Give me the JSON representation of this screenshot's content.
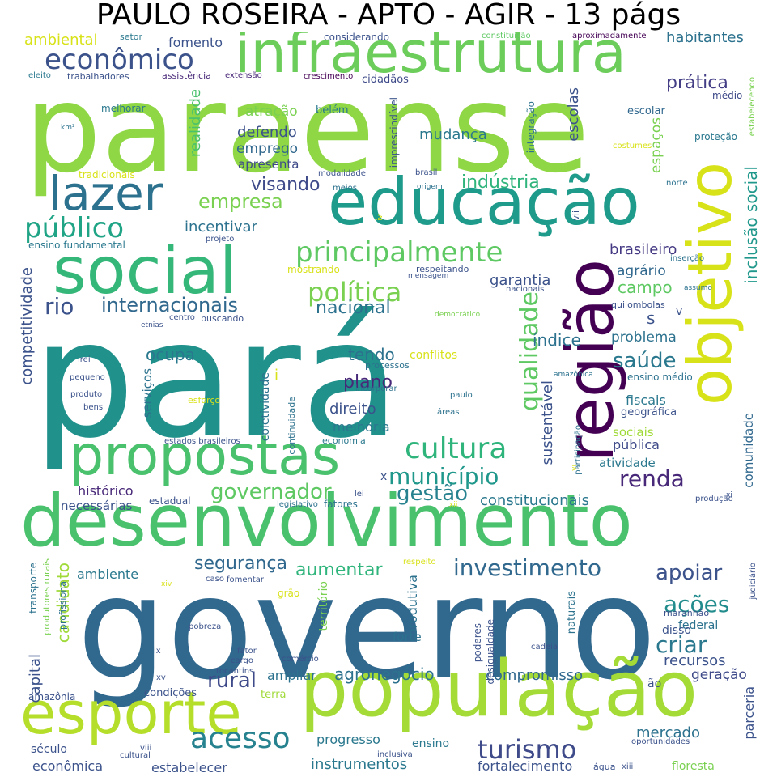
{
  "title": "PAULO ROSEIRA - APTO - AGIR - 13 págs",
  "words": [
    {
      "text": "paraense",
      "color": "#8fd744"
    },
    {
      "text": "pará",
      "color": "#21918c"
    },
    {
      "text": "governo",
      "color": "#31688e"
    },
    {
      "text": "desenvolvimento",
      "color": "#4ac16d"
    },
    {
      "text": "população",
      "color": "#a5db36"
    },
    {
      "text": "infraestrutura",
      "color": "#6ccd5a"
    },
    {
      "text": "educação",
      "color": "#1e9b8a"
    },
    {
      "text": "social",
      "color": "#35b779"
    },
    {
      "text": "esporte",
      "color": "#b5de2b"
    },
    {
      "text": "propostas",
      "color": "#4ac16d"
    },
    {
      "text": "região",
      "color": "#440154"
    },
    {
      "text": "objetivo",
      "color": "#d8e219"
    },
    {
      "text": "lazer",
      "color": "#2c728e"
    },
    {
      "text": "econômico",
      "color": "#3b528b"
    },
    {
      "text": "acesso",
      "color": "#26828e"
    },
    {
      "text": "cultura",
      "color": "#2fb47c"
    },
    {
      "text": "principalmente",
      "color": "#5ec962"
    },
    {
      "text": "público",
      "color": "#20a486"
    },
    {
      "text": "política",
      "color": "#7ad151"
    },
    {
      "text": "turismo",
      "color": "#3e4a89"
    },
    {
      "text": "renda",
      "color": "#482878"
    },
    {
      "text": "investimento",
      "color": "#31688e"
    },
    {
      "text": "criar",
      "color": "#2a788e"
    },
    {
      "text": "ações",
      "color": "#228c8d"
    },
    {
      "text": "apoiar",
      "color": "#3b528b"
    },
    {
      "text": "saúde",
      "color": "#2a788e"
    },
    {
      "text": "qualidade",
      "color": "#5ec962"
    },
    {
      "text": "município",
      "color": "#1f988b"
    },
    {
      "text": "gestão",
      "color": "#26828e"
    },
    {
      "text": "governador",
      "color": "#5ec962"
    },
    {
      "text": "empresa",
      "color": "#7ad151"
    },
    {
      "text": "indústria",
      "color": "#2fb47c"
    },
    {
      "text": "visando",
      "color": "#3e4a89"
    },
    {
      "text": "rio",
      "color": "#3b528b"
    },
    {
      "text": "internacionais",
      "color": "#31688e"
    },
    {
      "text": "nacional",
      "color": "#2c728e"
    },
    {
      "text": "prática",
      "color": "#433e85"
    },
    {
      "text": "habitantes",
      "color": "#2c728e"
    },
    {
      "text": "ambiental",
      "color": "#d8e219"
    },
    {
      "text": "setor",
      "color": "#2a788e"
    },
    {
      "text": "fomento",
      "color": "#3b528b"
    },
    {
      "text": "considerando",
      "color": "#3b528b"
    },
    {
      "text": "constituição",
      "color": "#5ec962"
    },
    {
      "text": "aproximadamente",
      "color": "#440154"
    },
    {
      "text": "eleito",
      "color": "#2a788e"
    },
    {
      "text": "trabalhadores",
      "color": "#3b528b"
    },
    {
      "text": "assistência",
      "color": "#482878"
    },
    {
      "text": "extensão",
      "color": "#482878"
    },
    {
      "text": "crescimento",
      "color": "#440154"
    },
    {
      "text": "cidadãos",
      "color": "#3e4a89"
    },
    {
      "text": "médio",
      "color": "#3e4a89"
    },
    {
      "text": "realidade",
      "color": "#4ac16d"
    },
    {
      "text": "atração",
      "color": "#7ad151"
    },
    {
      "text": "belém",
      "color": "#2a788e"
    },
    {
      "text": "defendo",
      "color": "#3b528b"
    },
    {
      "text": "emprego",
      "color": "#31688e"
    },
    {
      "text": "apresenta",
      "color": "#3e4a89"
    },
    {
      "text": "mudança",
      "color": "#2a788e"
    },
    {
      "text": "escolas",
      "color": "#3b528b"
    },
    {
      "text": "espaços",
      "color": "#7ad151"
    },
    {
      "text": "escolar",
      "color": "#31688e"
    },
    {
      "text": "proteção",
      "color": "#2a788e"
    },
    {
      "text": "costumes",
      "color": "#d8e219"
    },
    {
      "text": "inclusão social",
      "color": "#1f988b"
    },
    {
      "text": "brasileiro",
      "color": "#443983"
    },
    {
      "text": "agrário",
      "color": "#31688e"
    },
    {
      "text": "campo",
      "color": "#5ec962"
    },
    {
      "text": "garantia",
      "color": "#3b528b"
    },
    {
      "text": "incentivar",
      "color": "#2c728e"
    },
    {
      "text": "competitividade",
      "color": "#3b528b"
    },
    {
      "text": "ocupa",
      "color": "#2a788e"
    },
    {
      "text": "tendo",
      "color": "#2c728e"
    },
    {
      "text": "conflitos",
      "color": "#d8e219"
    },
    {
      "text": "plano",
      "color": "#482878"
    },
    {
      "text": "direito",
      "color": "#3b528b"
    },
    {
      "text": "melhoria",
      "color": "#2a788e"
    },
    {
      "text": "índice",
      "color": "#2c728e"
    },
    {
      "text": "problema",
      "color": "#2c728e"
    },
    {
      "text": "sustentável",
      "color": "#3b528b"
    },
    {
      "text": "fiscais",
      "color": "#2a788e"
    },
    {
      "text": "sociais",
      "color": "#a0da39"
    },
    {
      "text": "pública",
      "color": "#3e4a89"
    },
    {
      "text": "atividade",
      "color": "#2a788e"
    },
    {
      "text": "comunidade",
      "color": "#31688e"
    },
    {
      "text": "constitucionais",
      "color": "#2a788e"
    },
    {
      "text": "histórico",
      "color": "#482878"
    },
    {
      "text": "necessárias",
      "color": "#3b528b"
    },
    {
      "text": "estadual",
      "color": "#3b528b"
    },
    {
      "text": "segurança",
      "color": "#31688e"
    },
    {
      "text": "aumentar",
      "color": "#2fb47c"
    },
    {
      "text": "ambiente",
      "color": "#2a788e"
    },
    {
      "text": "candidato",
      "color": "#a0da39"
    },
    {
      "text": "rural",
      "color": "#3e4a89"
    },
    {
      "text": "ampliar",
      "color": "#2c728e"
    },
    {
      "text": "agronegócio",
      "color": "#2c728e"
    },
    {
      "text": "compromisso",
      "color": "#31688e"
    },
    {
      "text": "recursos",
      "color": "#3b528b"
    },
    {
      "text": "geração",
      "color": "#3e4a89"
    },
    {
      "text": "mercado",
      "color": "#2c728e"
    },
    {
      "text": "parceria",
      "color": "#3b528b"
    },
    {
      "text": "instrumentos",
      "color": "#2a788e"
    },
    {
      "text": "estabelecer",
      "color": "#3b528b"
    },
    {
      "text": "econômica",
      "color": "#3b528b"
    },
    {
      "text": "fortalecimento",
      "color": "#3b528b"
    },
    {
      "text": "floresta",
      "color": "#7ad151"
    },
    {
      "text": "capital",
      "color": "#3b528b"
    },
    {
      "text": "amazônia",
      "color": "#3b528b"
    },
    {
      "text": "século",
      "color": "#3b528b"
    },
    {
      "text": "progresso",
      "color": "#2a788e"
    },
    {
      "text": "ensino",
      "color": "#2a788e"
    },
    {
      "text": "condições",
      "color": "#3b528b"
    },
    {
      "text": "terra",
      "color": "#a0da39"
    },
    {
      "text": "tradicionais",
      "color": "#d8e219"
    },
    {
      "text": "ensino fundamental",
      "color": "#2a788e"
    },
    {
      "text": "melhorar",
      "color": "#2a788e"
    },
    {
      "text": "estados brasileiros",
      "color": "#3b528b"
    },
    {
      "text": "coletividade",
      "color": "#2c728e"
    },
    {
      "text": "serviços",
      "color": "#2c728e"
    },
    {
      "text": "continuidade",
      "color": "#2c728e"
    },
    {
      "text": "economia",
      "color": "#2a788e"
    },
    {
      "text": "processos",
      "color": "#2c728e"
    },
    {
      "text": "incorporar",
      "color": "#2c728e"
    },
    {
      "text": "áreas",
      "color": "#2c728e"
    },
    {
      "text": "paulo",
      "color": "#2c728e"
    },
    {
      "text": "esforço",
      "color": "#d8e219"
    },
    {
      "text": "produto",
      "color": "#3b528b"
    },
    {
      "text": "bens",
      "color": "#3b528b"
    },
    {
      "text": "pequeno",
      "color": "#3b528b"
    },
    {
      "text": "irei",
      "color": "#3b528b"
    },
    {
      "text": "centro",
      "color": "#3b528b"
    },
    {
      "text": "buscando",
      "color": "#3b528b"
    },
    {
      "text": "etnias",
      "color": "#3b528b"
    },
    {
      "text": "mostrando",
      "color": "#d8e219"
    },
    {
      "text": "respeitando",
      "color": "#3b528b"
    },
    {
      "text": "mensagem",
      "color": "#3b528b"
    },
    {
      "text": "nacionais",
      "color": "#3b528b"
    },
    {
      "text": "democrático",
      "color": "#7ad151"
    },
    {
      "text": "quilombolas",
      "color": "#3b528b"
    },
    {
      "text": "inserção",
      "color": "#2c728e"
    },
    {
      "text": "assumo",
      "color": "#2c728e"
    },
    {
      "text": "projeto",
      "color": "#3b528b"
    },
    {
      "text": "brasil",
      "color": "#3b528b"
    },
    {
      "text": "origem",
      "color": "#2c728e"
    },
    {
      "text": "meios",
      "color": "#2c728e"
    },
    {
      "text": "modalidade",
      "color": "#3b528b"
    },
    {
      "text": "imprescindível",
      "color": "#3b528b"
    },
    {
      "text": "integração",
      "color": "#2c728e"
    },
    {
      "text": "norte",
      "color": "#2c728e"
    },
    {
      "text": "estabelecendo",
      "color": "#7ad151"
    },
    {
      "text": "km²",
      "color": "#2c728e"
    },
    {
      "text": "transporte",
      "color": "#2c728e"
    },
    {
      "text": "produtores rurais",
      "color": "#7ad151"
    },
    {
      "text": "profissional",
      "color": "#2c728e"
    },
    {
      "text": "pobreza",
      "color": "#3b528b"
    },
    {
      "text": "fator",
      "color": "#3b528b"
    },
    {
      "text": "cargo",
      "color": "#3b528b"
    },
    {
      "text": "tocantins",
      "color": "#3b528b"
    },
    {
      "text": "comércio",
      "color": "#3b528b"
    },
    {
      "text": "cadeia",
      "color": "#3b528b"
    },
    {
      "text": "território",
      "color": "#7ad151"
    },
    {
      "text": "forte",
      "color": "#2c728e"
    },
    {
      "text": "produtiva",
      "color": "#2c728e"
    },
    {
      "text": "poderes",
      "color": "#3b528b"
    },
    {
      "text": "desigualdade",
      "color": "#3b528b"
    },
    {
      "text": "naturais",
      "color": "#2c728e"
    },
    {
      "text": "federal",
      "color": "#2c728e"
    },
    {
      "text": "disso",
      "color": "#3b528b"
    },
    {
      "text": "maranhão",
      "color": "#3b528b"
    },
    {
      "text": "judiciário",
      "color": "#3b528b"
    },
    {
      "text": "ão",
      "color": "#3b528b"
    },
    {
      "text": "oportunidades",
      "color": "#3b528b"
    },
    {
      "text": "água",
      "color": "#3b528b"
    },
    {
      "text": "xiii",
      "color": "#3b528b"
    },
    {
      "text": "lei",
      "color": "#3b528b"
    },
    {
      "text": "legislativo",
      "color": "#2c728e"
    },
    {
      "text": "fatores",
      "color": "#2c728e"
    },
    {
      "text": "fomentar",
      "color": "#3b528b"
    },
    {
      "text": "grão",
      "color": "#d8e219"
    },
    {
      "text": "respeito",
      "color": "#d8e219"
    },
    {
      "text": "caso",
      "color": "#3b528b"
    },
    {
      "text": "produção",
      "color": "#3b528b"
    },
    {
      "text": "participação",
      "color": "#2c728e"
    },
    {
      "text": "amazônica",
      "color": "#2c728e"
    },
    {
      "text": "geográfica",
      "color": "#3b528b"
    },
    {
      "text": "ensino médio",
      "color": "#2c728e"
    },
    {
      "text": "cultural",
      "color": "#3b528b"
    },
    {
      "text": "inclusiva",
      "color": "#3b528b"
    },
    {
      "text": "s",
      "color": "#3b528b"
    },
    {
      "text": "i",
      "color": "#d8e219"
    },
    {
      "text": "v",
      "color": "#3b528b"
    },
    {
      "text": "xiv",
      "color": "#d8e219"
    },
    {
      "text": "ix",
      "color": "#3b528b"
    },
    {
      "text": "xv",
      "color": "#3b528b"
    },
    {
      "text": "viii",
      "color": "#3b528b"
    },
    {
      "text": "vii",
      "color": "#3b528b"
    },
    {
      "text": "xi",
      "color": "#3b528b"
    },
    {
      "text": "iv",
      "color": "#d8e219"
    },
    {
      "text": "vi",
      "color": "#d8e219"
    },
    {
      "text": "xii",
      "color": "#d8e219"
    },
    {
      "text": "x",
      "color": "#3b528b"
    }
  ]
}
